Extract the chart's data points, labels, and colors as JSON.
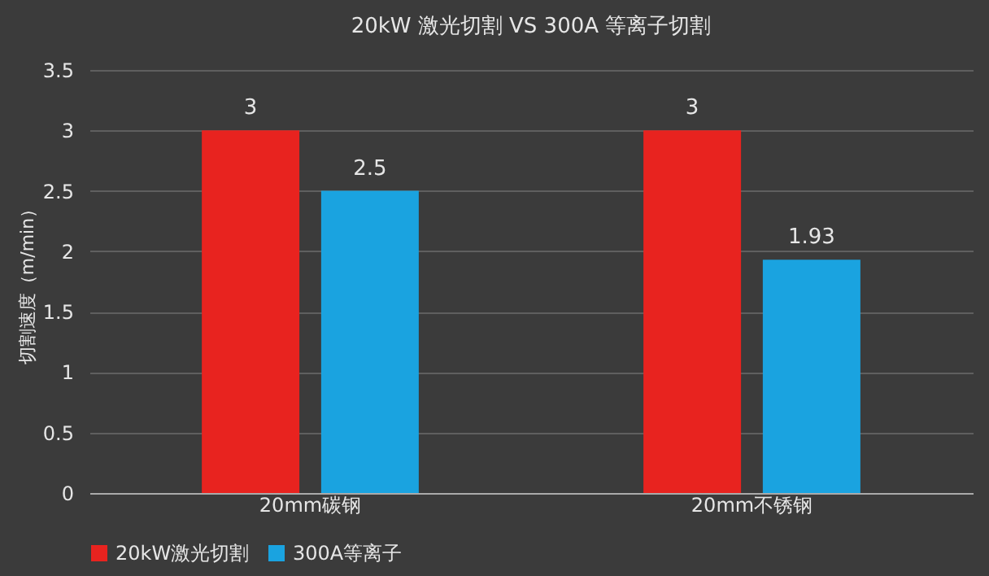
{
  "chart_data": {
    "type": "bar",
    "title": "20kW 激光切割 VS 300A 等离子切割",
    "ylabel": "切割速度（m/min）",
    "categories": [
      "20mm碳钢",
      "20mm不锈钢"
    ],
    "series": [
      {
        "name": "20kW激光切割",
        "color": "#e8231f",
        "values": [
          3,
          3
        ]
      },
      {
        "name": "300A等离子",
        "color": "#1aa3e0",
        "values": [
          2.5,
          1.93
        ]
      }
    ],
    "ylim": [
      0,
      3.5
    ],
    "yticks": [
      0,
      0.5,
      1,
      1.5,
      2,
      2.5,
      3,
      3.5
    ],
    "grid": "y",
    "legend": "bottom",
    "data_labels": true
  }
}
